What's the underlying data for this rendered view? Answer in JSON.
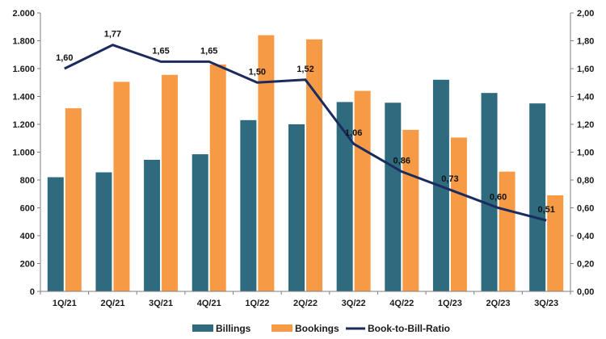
{
  "chart_data": {
    "type": "bar",
    "categories": [
      "1Q/21",
      "2Q/21",
      "3Q/21",
      "4Q/21",
      "1Q/22",
      "2Q/22",
      "3Q/22",
      "4Q/22",
      "1Q/23",
      "2Q/23",
      "3Q/23"
    ],
    "series": [
      {
        "name": "Billings",
        "type": "bar",
        "axis": "left",
        "color": "#2E6B7E",
        "values": [
          820,
          855,
          945,
          985,
          1230,
          1200,
          1360,
          1355,
          1520,
          1425,
          1350
        ]
      },
      {
        "name": "Bookings",
        "type": "bar",
        "axis": "left",
        "color": "#F79A46",
        "values": [
          1315,
          1505,
          1555,
          1630,
          1840,
          1810,
          1440,
          1160,
          1105,
          860,
          690
        ]
      },
      {
        "name": "Book-to-Bill-Ratio",
        "type": "line",
        "axis": "right",
        "color": "#1B2B5E",
        "values": [
          1.6,
          1.77,
          1.65,
          1.65,
          1.5,
          1.52,
          1.06,
          0.86,
          0.73,
          0.6,
          0.51
        ],
        "labels": [
          "1,60",
          "1,77",
          "1,65",
          "1,65",
          "1,50",
          "1,52",
          "1,06",
          "0,86",
          "0,73",
          "0,60",
          "0,51"
        ]
      }
    ],
    "left_axis": {
      "ylim": [
        0,
        2000
      ],
      "ticks": [
        0,
        200,
        400,
        600,
        800,
        1000,
        1200,
        1400,
        1600,
        1800,
        2000
      ],
      "tick_labels": [
        "0",
        "200",
        "400",
        "600",
        "800",
        "1.000",
        "1.200",
        "1.400",
        "1.600",
        "1.800",
        "2.000"
      ]
    },
    "right_axis": {
      "ylim": [
        0,
        2
      ],
      "ticks": [
        0,
        0.2,
        0.4,
        0.6,
        0.8,
        1.0,
        1.2,
        1.4,
        1.6,
        1.8,
        2.0
      ],
      "tick_labels": [
        "0,00",
        "0,20",
        "0,40",
        "0,60",
        "0,80",
        "1,00",
        "1,20",
        "1,40",
        "1,60",
        "1,80",
        "2,00"
      ]
    },
    "grid": false,
    "legend_position": "bottom"
  }
}
